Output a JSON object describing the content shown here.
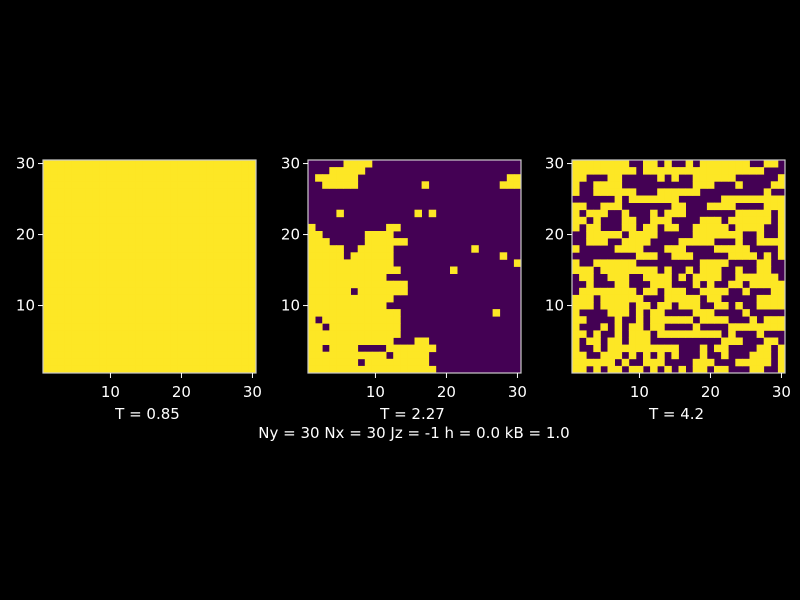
{
  "caption": "Ny = 30 Nx = 30 Jz = -1 h = 0.0 kB = 1.0",
  "colors": {
    "background": "#000000",
    "spin_up": "#fde725",
    "spin_down": "#440154",
    "frame": "#cccccc"
  },
  "chart_data": [
    {
      "type": "heatmap",
      "title": "T = 0.85",
      "xlim": [
        1,
        30
      ],
      "ylim": [
        1,
        30
      ],
      "xticks": [
        "10",
        "20",
        "30"
      ],
      "yticks": [
        "10",
        "20",
        "30"
      ],
      "grid": false,
      "row_order": "top-to-bottom (y = 30 first)",
      "rows": [
        "111111111111111111111111111111",
        "111111111111111111111111111111",
        "111111111111111111111111111111",
        "111111111111111111111111111111",
        "111111111111111111111111111111",
        "111111111111111111111111111111",
        "111111111111111111111111111111",
        "111111111111111111111111111111",
        "111111111111111111111111111111",
        "111111111111111111111111111111",
        "111111111111111111111111111111",
        "111111111111111111111111111111",
        "111111111111111111111111111111",
        "111111111111111111111111111111",
        "111111111111111111111111111111",
        "111111111111111111111111111111",
        "111111111111111111111111111111",
        "111111111111111111111111111111",
        "111111111111111111111111111111",
        "111111111111111111111111111111",
        "111111111111111111111111111111",
        "111111111111111111111111111111",
        "111111111111111111111111111111",
        "111111111111111111111111111111",
        "111111111111111111111111111111",
        "111111111111111111111111111111",
        "111111111111111111111111111111",
        "111111111111111111111111111111",
        "111111111111111111111111111111",
        "111111111111111111111111111111"
      ]
    },
    {
      "type": "heatmap",
      "title": "T = 2.27",
      "xlim": [
        1,
        30
      ],
      "ylim": [
        1,
        30
      ],
      "xticks": [
        "10",
        "20",
        "30"
      ],
      "yticks": [
        "10",
        "20",
        "30"
      ],
      "grid": false,
      "row_order": "top-to-bottom (y = 30 first)",
      "rows": [
        "000001111000000000000000000000",
        "000111110000000000000000000000",
        "011111100000000000000000000011",
        "001111100000000010000000000111",
        "000000000000000000000000000000",
        "000000000000000000000000000000",
        "000000000000000000000000000000",
        "000010000000000101000000000000",
        "000000000000000000000000000000",
        "100000000001100000000000000000",
        "110000001111000000000000000000",
        "111000001111110000000000000000",
        "111110011111000000000001000000",
        "111110111111000000000000000100",
        "111111111111000000000000000001",
        "111111111111100000001000000000",
        "111111111110000000000000000000",
        "111111111111110000000000000000",
        "111111011111110000000000000000",
        "111111111111000000000000000000",
        "111111111110000000000000000000",
        "111111111111100000000000001000",
        "101111111111100000000000000000",
        "110111111111100000000000000000",
        "111111111111100000000000000000",
        "111111111111000110000000000000",
        "110111100001111111000000000000",
        "111111111110111110000000000000",
        "111111101111111110000000000000",
        "111111111111111111000000000000"
      ]
    },
    {
      "type": "heatmap",
      "title": "T = 4.2",
      "xlim": [
        1,
        30
      ],
      "ylim": [
        1,
        30
      ],
      "xticks": [
        "10",
        "20",
        "30"
      ],
      "yticks": [
        "10",
        "20",
        "30"
      ],
      "grid": false,
      "row_order": "top-to-bottom (y = 30 first)",
      "rows": [
        "111111110011010010111111100110",
        "111111111011111111111111111000",
        "110001100000101001111110000001",
        "100111100000000001110001000011",
        "100111111000111111000000000100",
        "000000101111111000000111111111",
        "110011100000001100011110000111",
        "101110010001011100000001111101",
        "110100011001110000111011111101",
        "101100011011011001111101111001",
        "001111101111000001111111001001",
        "001110011110000111110001001111",
        "100000111100011100001111100001",
        "000000000111001110000011110101",
        "100111111000000000111100001100",
        "111011111111010010111001001100",
        "011001110011110101111001111110",
        "001000110001110001010011011111",
        "011111111011011100111100100011",
        "111011111100011111011000001111",
        "111011110110110111001101001111",
        "100001110101100001110000100000",
        "110000100101111110111100010111",
        "100010101101100001000011111111",
        "110100101110111111111010001000",
        "101101101110000000000111000110",
        "100101111111111000101100001101",
        "110011101010101000100100011101",
        "111111010011100001110001111101",
        "110101101101010101101100011001"
      ]
    }
  ]
}
